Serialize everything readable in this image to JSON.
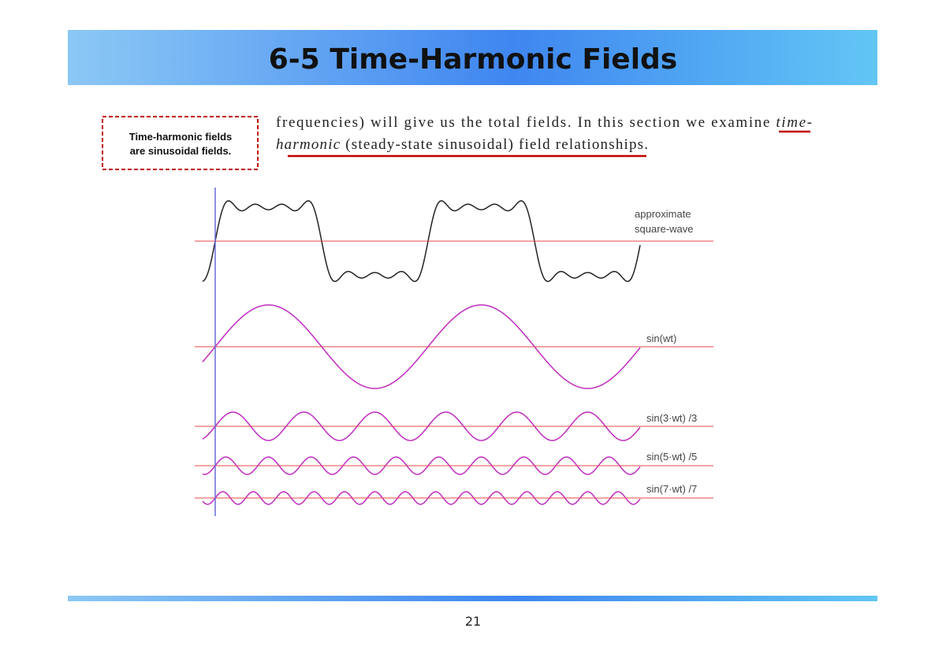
{
  "header": {
    "title": "6-5 Time-Harmonic Fields"
  },
  "note": {
    "lines": [
      "Time-harmonic fields",
      "are sinusoidal fields."
    ]
  },
  "paragraph": {
    "lines": [
      [
        "frequencies) will give us the total fields. In this section we examine ",
        "time-"
      ],
      [
        "harmonic",
        " (steady-state sinusoidal) field relationships."
      ]
    ]
  },
  "figure": {
    "labels": {
      "square": [
        "approximate",
        "square-wave"
      ],
      "h1": "sin(wt)",
      "h3": "sin(3·wt) /3",
      "h5": "sin(5·wt) /5",
      "h7": "sin(7·wt) /7"
    }
  },
  "footer": {
    "page_number": "21"
  }
}
